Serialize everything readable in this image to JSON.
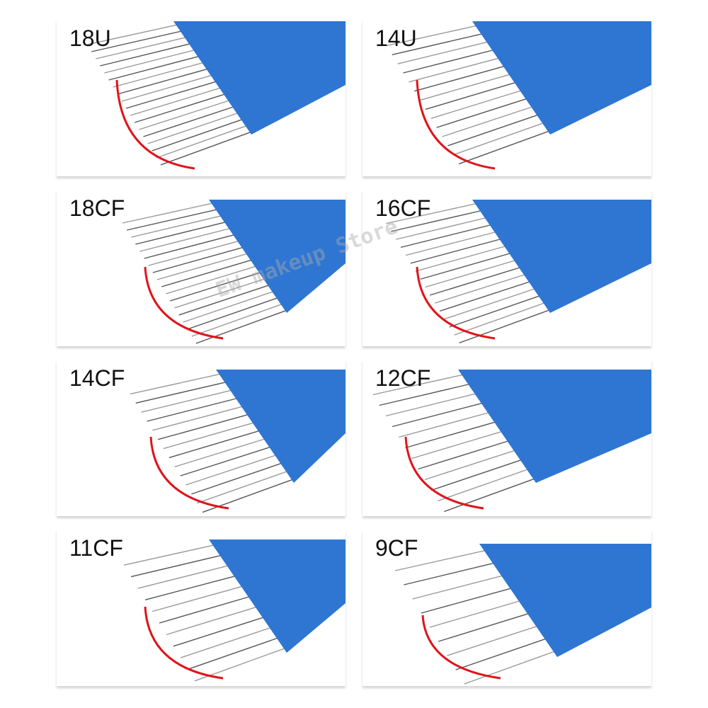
{
  "panels": [
    {
      "label": "18U"
    },
    {
      "label": "14U"
    },
    {
      "label": "18CF"
    },
    {
      "label": "16CF"
    },
    {
      "label": "14CF"
    },
    {
      "label": "12CF"
    },
    {
      "label": "11CF"
    },
    {
      "label": "9CF"
    }
  ],
  "watermark": "EW makeup Store"
}
